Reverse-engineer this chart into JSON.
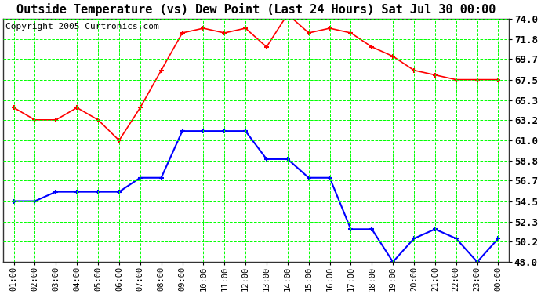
{
  "title": "Outside Temperature (vs) Dew Point (Last 24 Hours) Sat Jul 30 00:00",
  "copyright": "Copyright 2005 Curtronics.com",
  "x_labels": [
    "01:00",
    "02:00",
    "03:00",
    "04:00",
    "05:00",
    "06:00",
    "07:00",
    "08:00",
    "09:00",
    "10:00",
    "11:00",
    "12:00",
    "13:00",
    "14:00",
    "15:00",
    "16:00",
    "17:00",
    "18:00",
    "19:00",
    "20:00",
    "21:00",
    "22:00",
    "23:00",
    "00:00"
  ],
  "temp_red": [
    64.5,
    63.2,
    63.2,
    64.5,
    63.2,
    61.0,
    64.5,
    68.5,
    72.5,
    73.0,
    72.5,
    73.0,
    71.0,
    74.5,
    72.5,
    73.0,
    72.5,
    71.0,
    70.0,
    68.5,
    68.0,
    67.5,
    67.5,
    67.5
  ],
  "dew_blue": [
    54.5,
    54.5,
    55.5,
    55.5,
    55.5,
    55.5,
    57.0,
    57.0,
    62.0,
    62.0,
    62.0,
    62.0,
    59.0,
    59.0,
    57.0,
    57.0,
    51.5,
    51.5,
    48.0,
    50.5,
    51.5,
    50.5,
    48.0,
    50.5
  ],
  "ylim": [
    48.0,
    74.0
  ],
  "yticks": [
    48.0,
    50.2,
    52.3,
    54.5,
    56.7,
    58.8,
    61.0,
    63.2,
    65.3,
    67.5,
    69.7,
    71.8,
    74.0
  ],
  "ytick_labels": [
    "48.0",
    "50.2",
    "52.3",
    "54.5",
    "56.7",
    "58.8",
    "61.0",
    "63.2",
    "65.3",
    "67.5",
    "69.7",
    "71.8",
    "74.0"
  ],
  "bg_color": "#ffffff",
  "plot_bg_color": "#ffffff",
  "grid_color": "#00ff00",
  "temp_color": "#ff0000",
  "dew_color": "#0000ff",
  "title_fontsize": 11,
  "copyright_fontsize": 8,
  "tick_fontsize": 9,
  "x_tick_fontsize": 7.5
}
